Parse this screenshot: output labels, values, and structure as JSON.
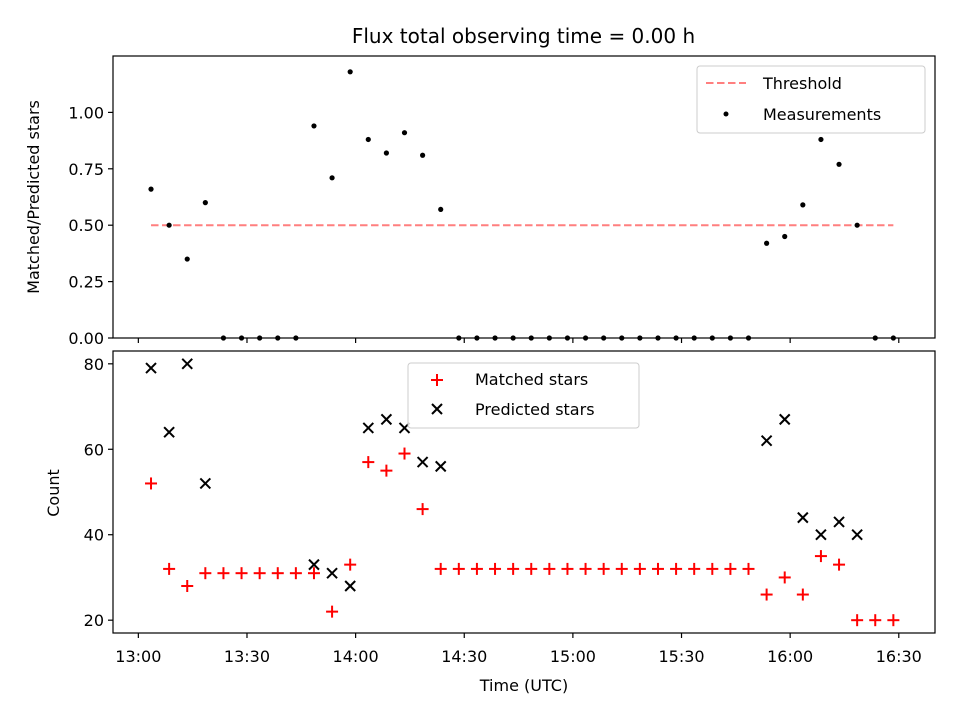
{
  "chart_data": [
    {
      "type": "scatter",
      "title": "Flux total observing time = 0.00 h",
      "xlabel": "",
      "ylabel": "Matched/Predicted stars",
      "ylim": [
        0.0,
        1.25
      ],
      "yticks": [
        "0.00",
        "0.25",
        "0.50",
        "0.75",
        "1.00"
      ],
      "legend": {
        "placement": "top-right",
        "threshold_label": "Threshold",
        "measurements_label": "Measurements"
      },
      "threshold": {
        "value": 0.5,
        "x_start_min": 3.5,
        "x_end_min": 208.5,
        "color": "#ff7f7f"
      },
      "series": [
        {
          "name": "Measurements",
          "color": "#000000",
          "points": [
            [
              3.5,
              0.66
            ],
            [
              8.5,
              0.5
            ],
            [
              13.5,
              0.35
            ],
            [
              18.5,
              0.6
            ],
            [
              23.5,
              0.0
            ],
            [
              28.5,
              0.0
            ],
            [
              33.5,
              0.0
            ],
            [
              38.5,
              0.0
            ],
            [
              43.5,
              0.0
            ],
            [
              48.5,
              0.94
            ],
            [
              53.5,
              0.71
            ],
            [
              58.5,
              1.18
            ],
            [
              63.5,
              0.88
            ],
            [
              68.5,
              0.82
            ],
            [
              73.5,
              0.91
            ],
            [
              78.5,
              0.81
            ],
            [
              83.5,
              0.57
            ],
            [
              88.5,
              0.0
            ],
            [
              93.5,
              0.0
            ],
            [
              98.5,
              0.0
            ],
            [
              103.5,
              0.0
            ],
            [
              108.5,
              0.0
            ],
            [
              113.5,
              0.0
            ],
            [
              118.5,
              0.0
            ],
            [
              123.5,
              0.0
            ],
            [
              128.5,
              0.0
            ],
            [
              133.5,
              0.0
            ],
            [
              138.5,
              0.0
            ],
            [
              143.5,
              0.0
            ],
            [
              148.5,
              0.0
            ],
            [
              153.5,
              0.0
            ],
            [
              158.5,
              0.0
            ],
            [
              163.5,
              0.0
            ],
            [
              168.5,
              0.0
            ],
            [
              173.5,
              0.42
            ],
            [
              178.5,
              0.45
            ],
            [
              183.5,
              0.59
            ],
            [
              188.5,
              0.88
            ],
            [
              193.5,
              0.77
            ],
            [
              198.5,
              0.5
            ],
            [
              203.5,
              0.0
            ],
            [
              208.5,
              0.0
            ]
          ]
        }
      ]
    },
    {
      "type": "scatter",
      "title": "",
      "xlabel": "Time (UTC)",
      "ylabel": "Count",
      "xlim_min": [
        -7,
        220
      ],
      "xticks": [
        "13:00",
        "13:30",
        "14:00",
        "14:30",
        "15:00",
        "15:30",
        "16:00",
        "16:30"
      ],
      "ylim": [
        17,
        83
      ],
      "yticks": [
        "20",
        "40",
        "60",
        "80"
      ],
      "legend": {
        "placement": "top-center"
      },
      "series": [
        {
          "name": "Matched stars",
          "marker": "+",
          "color": "#ff0000",
          "points": [
            [
              3.5,
              52
            ],
            [
              8.5,
              32
            ],
            [
              13.5,
              28
            ],
            [
              18.5,
              31
            ],
            [
              23.5,
              31
            ],
            [
              28.5,
              31
            ],
            [
              33.5,
              31
            ],
            [
              38.5,
              31
            ],
            [
              43.5,
              31
            ],
            [
              48.5,
              31
            ],
            [
              53.5,
              22
            ],
            [
              58.5,
              33
            ],
            [
              63.5,
              57
            ],
            [
              68.5,
              55
            ],
            [
              73.5,
              59
            ],
            [
              78.5,
              46
            ],
            [
              83.5,
              32
            ],
            [
              88.5,
              32
            ],
            [
              93.5,
              32
            ],
            [
              98.5,
              32
            ],
            [
              103.5,
              32
            ],
            [
              108.5,
              32
            ],
            [
              113.5,
              32
            ],
            [
              118.5,
              32
            ],
            [
              123.5,
              32
            ],
            [
              128.5,
              32
            ],
            [
              133.5,
              32
            ],
            [
              138.5,
              32
            ],
            [
              143.5,
              32
            ],
            [
              148.5,
              32
            ],
            [
              153.5,
              32
            ],
            [
              158.5,
              32
            ],
            [
              163.5,
              32
            ],
            [
              168.5,
              32
            ],
            [
              173.5,
              26
            ],
            [
              178.5,
              30
            ],
            [
              183.5,
              26
            ],
            [
              188.5,
              35
            ],
            [
              193.5,
              33
            ],
            [
              198.5,
              20
            ],
            [
              203.5,
              20
            ],
            [
              208.5,
              20
            ]
          ]
        },
        {
          "name": "Predicted stars",
          "marker": "x",
          "color": "#000000",
          "points": [
            [
              3.5,
              79
            ],
            [
              8.5,
              64
            ],
            [
              13.5,
              80
            ],
            [
              18.5,
              52
            ],
            [
              48.5,
              33
            ],
            [
              53.5,
              31
            ],
            [
              58.5,
              28
            ],
            [
              63.5,
              65
            ],
            [
              68.5,
              67
            ],
            [
              73.5,
              65
            ],
            [
              78.5,
              57
            ],
            [
              83.5,
              56
            ],
            [
              173.5,
              62
            ],
            [
              178.5,
              67
            ],
            [
              183.5,
              44
            ],
            [
              188.5,
              40
            ],
            [
              193.5,
              43
            ],
            [
              198.5,
              40
            ]
          ]
        }
      ]
    }
  ]
}
